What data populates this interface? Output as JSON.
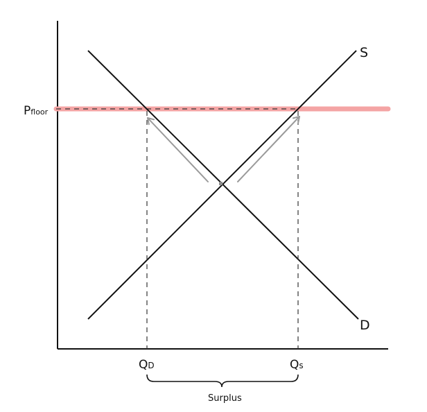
{
  "diagram": {
    "labels": {
      "price_floor": "P",
      "price_floor_sub": "floor",
      "supply": "S",
      "demand": "D",
      "qd_main": "Q",
      "qd_sub": "D",
      "qs_main": "Q",
      "qs_sub": "s",
      "surplus": "Surplus"
    },
    "colors": {
      "ink": "#111111",
      "floor_line": "#f4a4a4",
      "arrows": "#9a9a9a"
    }
  }
}
